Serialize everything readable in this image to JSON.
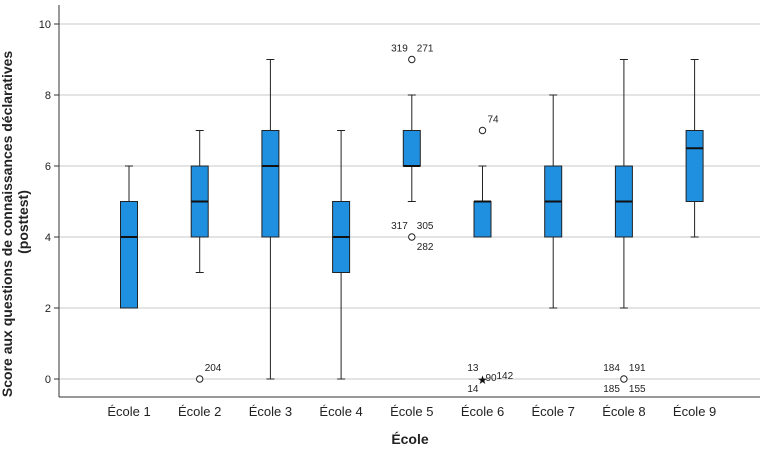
{
  "chart_data": {
    "type": "boxplot",
    "xlabel": "École",
    "ylabel_lines": [
      "Score aux questions de connaissances déclaratives",
      "(posttest)"
    ],
    "ylim": [
      -0.5,
      10.5
    ],
    "yticks": [
      0,
      2,
      4,
      6,
      8,
      10
    ],
    "grid": "horizontal",
    "box_color": "#1f8fe0",
    "categories": [
      "École 1",
      "École 2",
      "École 3",
      "École 4",
      "École 5",
      "École 6",
      "École 7",
      "École 8",
      "École 9"
    ],
    "boxes": [
      {
        "min": 2,
        "q1": 2,
        "median": 4,
        "q3": 5,
        "max": 6
      },
      {
        "min": 3,
        "q1": 4,
        "median": 5,
        "q3": 6,
        "max": 7
      },
      {
        "min": 0,
        "q1": 4,
        "median": 6,
        "q3": 7,
        "max": 9
      },
      {
        "min": 0,
        "q1": 3,
        "median": 4,
        "q3": 5,
        "max": 7
      },
      {
        "min": 5,
        "q1": 6,
        "median": 6,
        "q3": 7,
        "max": 8
      },
      {
        "min": 4,
        "q1": 4,
        "median": 5,
        "q3": 5,
        "max": 6
      },
      {
        "min": 2,
        "q1": 4,
        "median": 5,
        "q3": 6,
        "max": 8
      },
      {
        "min": 2,
        "q1": 4,
        "median": 5,
        "q3": 6,
        "max": 9
      },
      {
        "min": 4,
        "q1": 5,
        "median": 6.5,
        "q3": 7,
        "max": 9
      }
    ],
    "outliers": [
      {
        "category": 1,
        "value": 0,
        "marker": "circle",
        "labels": [
          {
            "text": "204",
            "pos": "top-right"
          }
        ]
      },
      {
        "category": 4,
        "value": 9,
        "marker": "circle",
        "labels": [
          {
            "text": "319",
            "pos": "top-left"
          },
          {
            "text": "271",
            "pos": "top-right"
          }
        ]
      },
      {
        "category": 4,
        "value": 4,
        "marker": "circle",
        "labels": [
          {
            "text": "317",
            "pos": "top-left"
          },
          {
            "text": "305",
            "pos": "top-right"
          },
          {
            "text": "282",
            "pos": "bottom-right"
          }
        ]
      },
      {
        "category": 5,
        "value": 7,
        "marker": "circle",
        "labels": [
          {
            "text": "74",
            "pos": "top-right"
          }
        ]
      },
      {
        "category": 5,
        "value": 0,
        "marker": "star",
        "labels": [
          {
            "text": "13",
            "pos": "top-left"
          },
          {
            "text": "90",
            "pos": "right"
          },
          {
            "text": "142",
            "pos": "right-far"
          },
          {
            "text": "14",
            "pos": "bottom-left"
          }
        ]
      },
      {
        "category": 7,
        "value": 0,
        "marker": "circle",
        "labels": [
          {
            "text": "184",
            "pos": "top-left"
          },
          {
            "text": "191",
            "pos": "top-right"
          },
          {
            "text": "185",
            "pos": "bottom-left"
          },
          {
            "text": "155",
            "pos": "bottom-right"
          }
        ]
      }
    ]
  }
}
